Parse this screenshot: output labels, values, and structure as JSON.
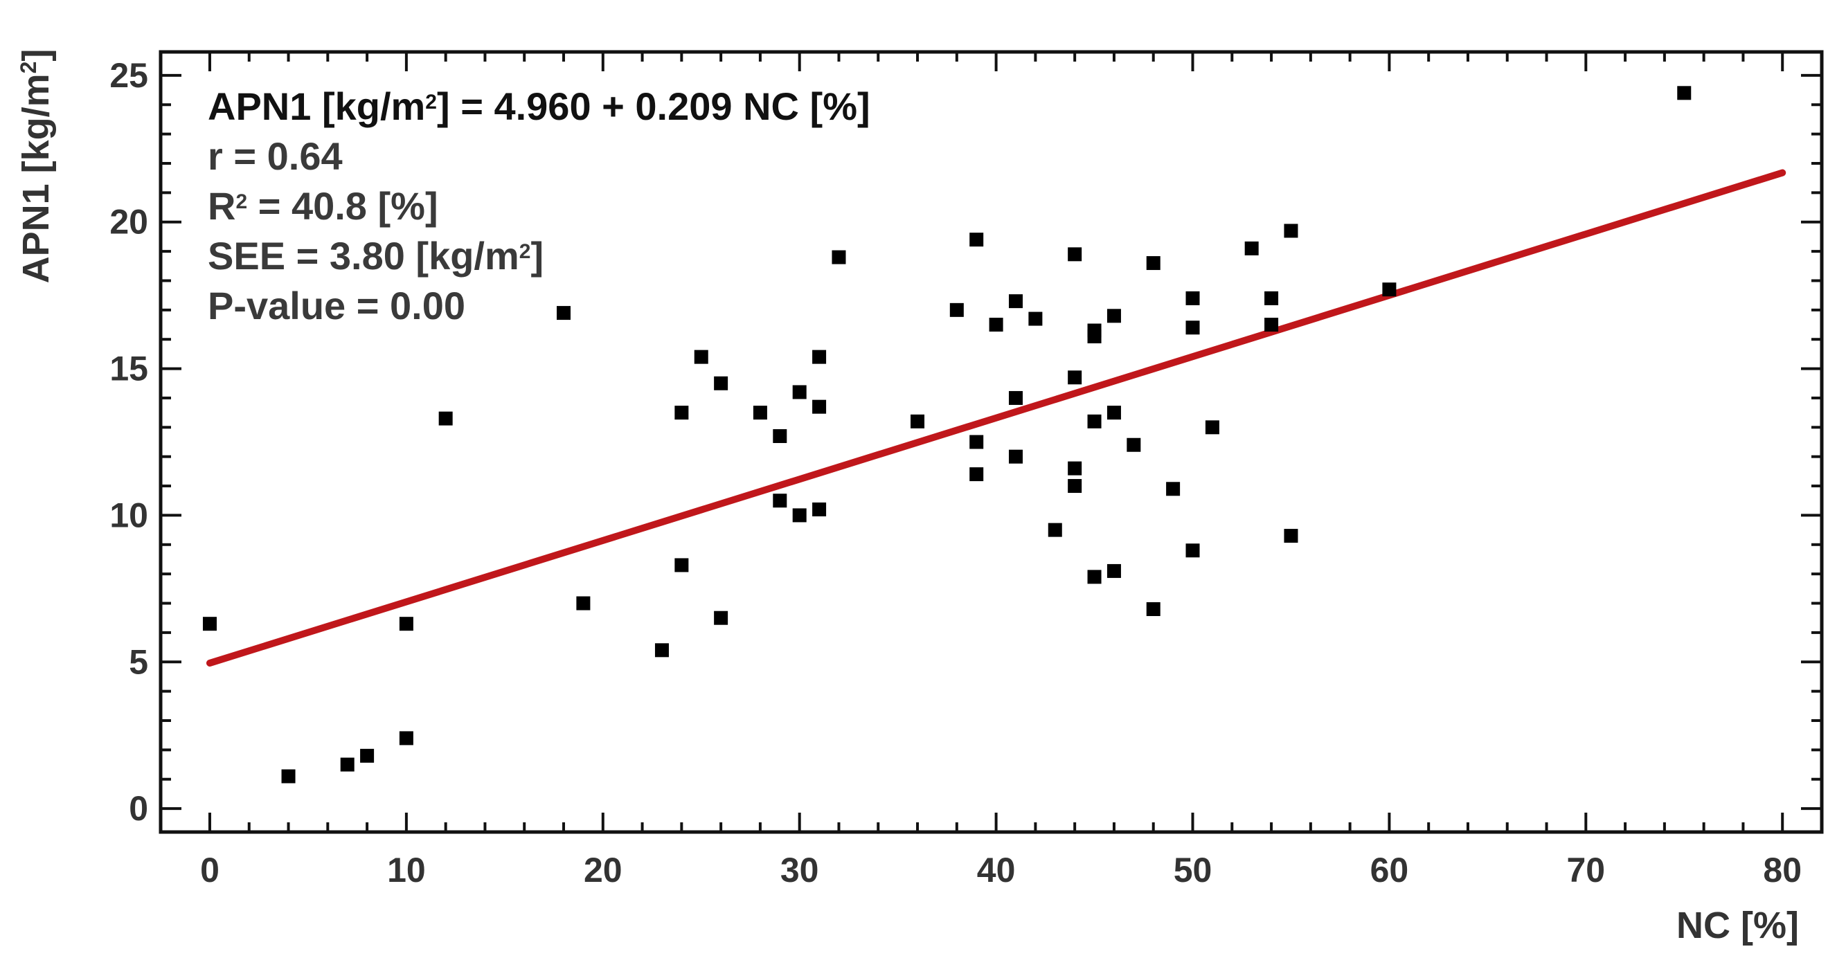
{
  "chart_data": {
    "type": "scatter",
    "title": "",
    "xlabel": "NC [%]",
    "ylabel_main": "APN1 [kg/m",
    "ylabel_sup": "2",
    "ylabel_close": "]",
    "xlim": [
      -2.5,
      82
    ],
    "ylim": [
      -0.8,
      25.8
    ],
    "xticks": [
      "0",
      "10",
      "20",
      "30",
      "40",
      "50",
      "60",
      "70",
      "80"
    ],
    "yticks": [
      "0",
      "5",
      "10",
      "15",
      "20",
      "25"
    ],
    "xtick_values": [
      0,
      10,
      20,
      30,
      40,
      50,
      60,
      70,
      80
    ],
    "ytick_values": [
      0,
      5,
      10,
      15,
      20,
      25
    ],
    "fit": {
      "intercept": 4.96,
      "slope": 0.209,
      "x_range": [
        0,
        80
      ],
      "color": "#c0171b"
    },
    "annotations": {
      "equation_pre": "APN1 [kg/m",
      "equation_sup": "2",
      "equation_post": "] = 4.960 + 0.209 NC  [%]",
      "r": "r = 0.64",
      "r2_pre": "R",
      "r2_sup": "2",
      "r2_post": " = 40.8 [%]",
      "see_pre": "SEE = 3.80 [kg/m",
      "see_sup": "2",
      "see_post": "]",
      "pvalue": "P-value = 0.00"
    },
    "points": [
      {
        "x": 0,
        "y": 6.3
      },
      {
        "x": 4,
        "y": 1.1
      },
      {
        "x": 7,
        "y": 1.5
      },
      {
        "x": 8,
        "y": 1.8
      },
      {
        "x": 10,
        "y": 2.4
      },
      {
        "x": 10,
        "y": 6.3
      },
      {
        "x": 12,
        "y": 13.3
      },
      {
        "x": 18,
        "y": 16.9
      },
      {
        "x": 19,
        "y": 7.0
      },
      {
        "x": 23,
        "y": 5.4
      },
      {
        "x": 24,
        "y": 13.5
      },
      {
        "x": 24,
        "y": 8.3
      },
      {
        "x": 25,
        "y": 15.4
      },
      {
        "x": 26,
        "y": 14.5
      },
      {
        "x": 26,
        "y": 6.5
      },
      {
        "x": 28,
        "y": 13.5
      },
      {
        "x": 29,
        "y": 12.7
      },
      {
        "x": 29,
        "y": 10.5
      },
      {
        "x": 30,
        "y": 14.2
      },
      {
        "x": 30,
        "y": 10.0
      },
      {
        "x": 31,
        "y": 15.4
      },
      {
        "x": 31,
        "y": 13.7
      },
      {
        "x": 31,
        "y": 10.2
      },
      {
        "x": 32,
        "y": 18.8
      },
      {
        "x": 36,
        "y": 13.2
      },
      {
        "x": 38,
        "y": 17.0
      },
      {
        "x": 39,
        "y": 19.4
      },
      {
        "x": 39,
        "y": 12.5
      },
      {
        "x": 39,
        "y": 11.4
      },
      {
        "x": 40,
        "y": 16.5
      },
      {
        "x": 41,
        "y": 17.3
      },
      {
        "x": 41,
        "y": 14.0
      },
      {
        "x": 41,
        "y": 12.0
      },
      {
        "x": 42,
        "y": 16.7
      },
      {
        "x": 43,
        "y": 9.5
      },
      {
        "x": 44,
        "y": 18.9
      },
      {
        "x": 44,
        "y": 14.7
      },
      {
        "x": 44,
        "y": 11.6
      },
      {
        "x": 44,
        "y": 11.0
      },
      {
        "x": 45,
        "y": 16.3
      },
      {
        "x": 45,
        "y": 16.1
      },
      {
        "x": 45,
        "y": 13.2
      },
      {
        "x": 45,
        "y": 7.9
      },
      {
        "x": 46,
        "y": 16.8
      },
      {
        "x": 46,
        "y": 13.5
      },
      {
        "x": 46,
        "y": 8.1
      },
      {
        "x": 47,
        "y": 12.4
      },
      {
        "x": 48,
        "y": 18.6
      },
      {
        "x": 48,
        "y": 6.8
      },
      {
        "x": 49,
        "y": 10.9
      },
      {
        "x": 50,
        "y": 17.4
      },
      {
        "x": 50,
        "y": 16.4
      },
      {
        "x": 50,
        "y": 8.8
      },
      {
        "x": 51,
        "y": 13.0
      },
      {
        "x": 53,
        "y": 19.1
      },
      {
        "x": 54,
        "y": 17.4
      },
      {
        "x": 54,
        "y": 16.5
      },
      {
        "x": 55,
        "y": 19.7
      },
      {
        "x": 55,
        "y": 9.3
      },
      {
        "x": 60,
        "y": 17.7
      },
      {
        "x": 75,
        "y": 24.4
      }
    ]
  }
}
